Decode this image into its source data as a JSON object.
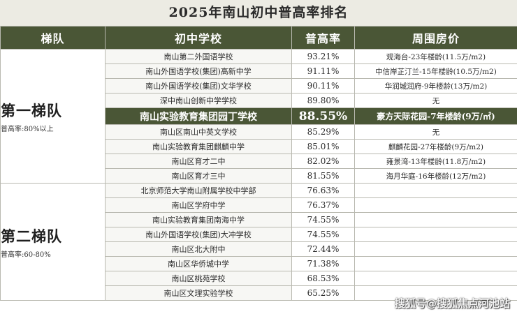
{
  "title": "2025年南山初中普高率排名",
  "headers": [
    "梯队",
    "初中学校",
    "普高率",
    "周围房价"
  ],
  "tiers": [
    {
      "name": "第一梯队",
      "subtitle": "普高率:80%以上",
      "rows": [
        {
          "school": "南山第二外国语学校",
          "rate": "93.21%",
          "price": "观海台-23年楼龄(11.5万/m2)"
        },
        {
          "school": "南山外国语学校(集团)高新中学",
          "rate": "91.11%",
          "price": "中信岸芷汀兰-15年楼龄(10.5万/m2)"
        },
        {
          "school": "南山外国语学校(集团)文华学校",
          "rate": "90.11%",
          "price": "华润城润府-9年楼龄(13万/m2)"
        },
        {
          "school": "深中南山创新中学学校",
          "rate": "89.80%",
          "price": "无"
        },
        {
          "school": "南山实验教育集团园丁学校",
          "rate": "88.55%",
          "price": "豪方天际花园-7年楼龄(9万/㎡)",
          "highlight": true
        },
        {
          "school": "南山区南山中英文学校",
          "rate": "85.29%",
          "price": "无"
        },
        {
          "school": "南山实验教育集团麒麟中学",
          "rate": "85.01%",
          "price": "麒麟花园-27年楼龄(9万/m2)"
        },
        {
          "school": "南山区育才二中",
          "rate": "82.02%",
          "price": "雍景湾-13年楼龄(11.8万/m2)"
        },
        {
          "school": "南山区育才三中",
          "rate": "81.55%",
          "price": "海月华庭-16年楼龄(12万/m2)"
        }
      ]
    },
    {
      "name": "第二梯队",
      "subtitle": "普高率:60-80%",
      "rows": [
        {
          "school": "北京师范大学南山附属学校中学部",
          "rate": "76.63%",
          "price": ""
        },
        {
          "school": "南山区学府中学",
          "rate": "76.37%",
          "price": ""
        },
        {
          "school": "南山实验教育集团南海中学",
          "rate": "74.55%",
          "price": ""
        },
        {
          "school": "南山外国语学校(集团)大冲学校",
          "rate": "74.55%",
          "price": ""
        },
        {
          "school": "南山区北大附中",
          "rate": "72.44%",
          "price": ""
        },
        {
          "school": "南山区华侨城中学",
          "rate": "71.38%",
          "price": ""
        },
        {
          "school": "南山区桃苑学校",
          "rate": "68.53%",
          "price": ""
        },
        {
          "school": "南山区文理实验学校",
          "rate": "65.25%",
          "price": ""
        }
      ]
    }
  ],
  "watermark": "搜狐号@搜狐焦点河池站"
}
